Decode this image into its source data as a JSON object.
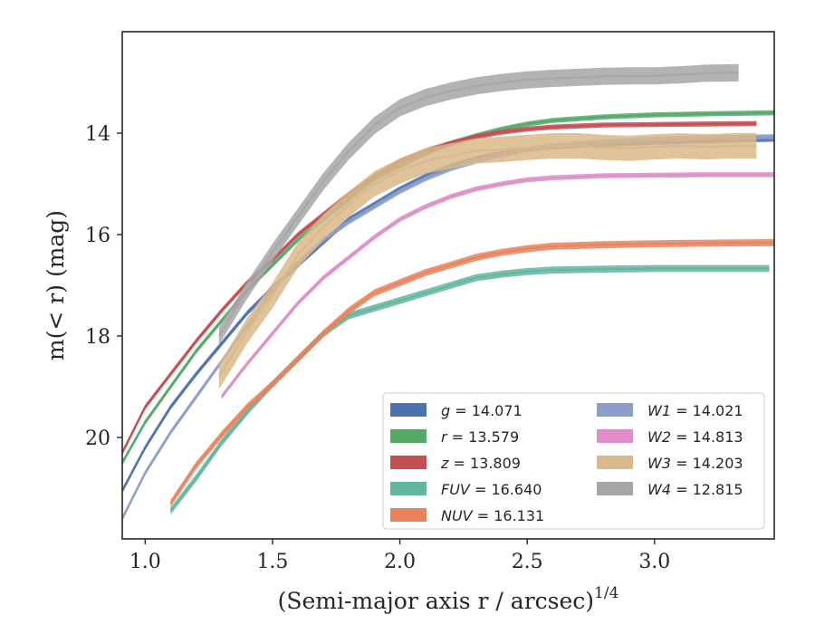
{
  "chart_data": {
    "type": "line",
    "title": "",
    "xlabel": "(Semi-major axis r / arcsec)",
    "xlabel_exponent": "1/4",
    "ylabel": "m(< r) (mag)",
    "xlim": [
      0.91,
      3.47
    ],
    "ylim": [
      22.0,
      12.0
    ],
    "y_inverted": true,
    "grid": false,
    "legend_position": "lower-right",
    "x_ticks": [
      {
        "value": 1.0,
        "label": "1.0"
      },
      {
        "value": 1.5,
        "label": "1.5"
      },
      {
        "value": 2.0,
        "label": "2.0"
      },
      {
        "value": 2.5,
        "label": "2.5"
      },
      {
        "value": 3.0,
        "label": "3.0"
      }
    ],
    "y_ticks": [
      {
        "value": 14,
        "label": "14"
      },
      {
        "value": 16,
        "label": "16"
      },
      {
        "value": 18,
        "label": "18"
      },
      {
        "value": 20,
        "label": "20"
      }
    ],
    "series": [
      {
        "name": "g",
        "legend_value": "14.071",
        "color": "#4c72b0",
        "x": [
          0.91,
          1.0,
          1.1,
          1.2,
          1.3,
          1.4,
          1.5,
          1.6,
          1.7,
          1.8,
          1.9,
          2.0,
          2.1,
          2.2,
          2.3,
          2.4,
          2.5,
          2.6,
          2.8,
          3.0,
          3.2,
          3.47
        ],
        "y": [
          21.05,
          20.2,
          19.4,
          18.75,
          18.15,
          17.55,
          17.05,
          16.6,
          16.15,
          15.7,
          15.4,
          15.1,
          14.85,
          14.65,
          14.5,
          14.4,
          14.32,
          14.27,
          14.22,
          14.18,
          14.15,
          14.12
        ],
        "band": 0.05
      },
      {
        "name": "r",
        "legend_value": "13.579",
        "color": "#55a868",
        "x": [
          0.91,
          1.0,
          1.1,
          1.2,
          1.3,
          1.4,
          1.5,
          1.6,
          1.7,
          1.8,
          1.9,
          2.0,
          2.1,
          2.2,
          2.3,
          2.4,
          2.5,
          2.6,
          2.8,
          3.0,
          3.2,
          3.47
        ],
        "y": [
          20.5,
          19.7,
          19.0,
          18.3,
          17.7,
          17.1,
          16.6,
          16.1,
          15.7,
          15.3,
          14.9,
          14.65,
          14.4,
          14.2,
          14.05,
          13.92,
          13.82,
          13.75,
          13.68,
          13.64,
          13.62,
          13.6
        ],
        "band": 0.05
      },
      {
        "name": "z",
        "legend_value": "13.809",
        "color": "#c44e52",
        "x": [
          0.91,
          1.0,
          1.1,
          1.2,
          1.3,
          1.4,
          1.5,
          1.6,
          1.7,
          1.8,
          1.9,
          2.0,
          2.1,
          2.2,
          2.3,
          2.4,
          2.5,
          2.6,
          2.8,
          3.0,
          3.2,
          3.4
        ],
        "y": [
          20.3,
          19.4,
          18.75,
          18.1,
          17.5,
          16.95,
          16.5,
          16.0,
          15.6,
          15.2,
          14.85,
          14.55,
          14.35,
          14.2,
          14.07,
          13.98,
          13.92,
          13.88,
          13.84,
          13.83,
          13.82,
          13.81
        ],
        "band": 0.05
      },
      {
        "name": "FUV",
        "legend_value": "16.640",
        "color": "#64b5a0",
        "x": [
          1.1,
          1.2,
          1.3,
          1.4,
          1.5,
          1.6,
          1.7,
          1.8,
          1.9,
          2.0,
          2.1,
          2.2,
          2.3,
          2.4,
          2.5,
          2.6,
          2.8,
          3.0,
          3.2,
          3.45
        ],
        "y": [
          21.45,
          20.8,
          20.1,
          19.5,
          18.95,
          18.45,
          17.95,
          17.6,
          17.45,
          17.3,
          17.15,
          17.0,
          16.85,
          16.78,
          16.73,
          16.7,
          16.68,
          16.67,
          16.67,
          16.67
        ],
        "band": 0.07
      },
      {
        "name": "NUV",
        "legend_value": "16.131",
        "color": "#e8825c",
        "x": [
          1.1,
          1.2,
          1.3,
          1.4,
          1.5,
          1.6,
          1.7,
          1.8,
          1.9,
          2.0,
          2.1,
          2.2,
          2.3,
          2.4,
          2.5,
          2.6,
          2.8,
          3.0,
          3.2,
          3.47
        ],
        "y": [
          21.3,
          20.55,
          19.95,
          19.4,
          18.95,
          18.45,
          17.95,
          17.5,
          17.15,
          16.95,
          16.75,
          16.6,
          16.45,
          16.35,
          16.28,
          16.23,
          16.2,
          16.18,
          16.17,
          16.16
        ],
        "band": 0.07
      },
      {
        "name": "W1",
        "legend_value": "14.021",
        "color": "#8c9dc9",
        "x": [
          0.91,
          1.0,
          1.1,
          1.2,
          1.3,
          1.4,
          1.5,
          1.6,
          1.7,
          1.8,
          1.9,
          2.0,
          2.1,
          2.2,
          2.3,
          2.4,
          2.5,
          2.6,
          2.8,
          3.0,
          3.2,
          3.47
        ],
        "y": [
          21.6,
          20.7,
          19.9,
          19.2,
          18.5,
          17.8,
          17.1,
          16.55,
          16.1,
          15.75,
          15.45,
          15.15,
          14.9,
          14.7,
          14.55,
          14.43,
          14.32,
          14.25,
          14.17,
          14.12,
          14.09,
          14.07
        ],
        "band": 0.05
      },
      {
        "name": "W2",
        "legend_value": "14.813",
        "color": "#dd8fc5",
        "x": [
          1.3,
          1.4,
          1.5,
          1.6,
          1.7,
          1.8,
          1.9,
          2.0,
          2.1,
          2.2,
          2.3,
          2.4,
          2.5,
          2.6,
          2.8,
          3.0,
          3.2,
          3.47
        ],
        "y": [
          19.2,
          18.55,
          17.95,
          17.35,
          16.85,
          16.45,
          16.05,
          15.7,
          15.45,
          15.25,
          15.1,
          15.0,
          14.92,
          14.88,
          14.84,
          14.83,
          14.82,
          14.82
        ],
        "band": 0.05
      },
      {
        "name": "W3",
        "legend_value": "14.203",
        "color": "#d9b88a",
        "x": [
          1.29,
          1.4,
          1.5,
          1.6,
          1.7,
          1.8,
          1.9,
          2.0,
          2.1,
          2.2,
          2.3,
          2.4,
          2.5,
          2.6,
          2.7,
          2.8,
          2.9,
          3.0,
          3.1,
          3.2,
          3.3,
          3.4
        ],
        "y": [
          18.8,
          17.9,
          17.2,
          16.4,
          15.85,
          15.4,
          15.0,
          14.75,
          14.55,
          14.45,
          14.35,
          14.32,
          14.28,
          14.25,
          14.25,
          14.28,
          14.3,
          14.27,
          14.25,
          14.27,
          14.25,
          14.25
        ],
        "band": 0.25
      },
      {
        "name": "W4",
        "legend_value": "12.815",
        "color": "#a6a6a6",
        "x": [
          1.29,
          1.4,
          1.5,
          1.6,
          1.7,
          1.8,
          1.9,
          2.0,
          2.1,
          2.2,
          2.3,
          2.4,
          2.5,
          2.6,
          2.7,
          2.8,
          2.9,
          3.0,
          3.1,
          3.2,
          3.33
        ],
        "y": [
          18.0,
          17.1,
          16.35,
          15.65,
          14.95,
          14.35,
          13.85,
          13.5,
          13.3,
          13.17,
          13.07,
          13.0,
          12.95,
          12.92,
          12.9,
          12.88,
          12.87,
          12.87,
          12.85,
          12.82,
          12.81
        ],
        "band": 0.17
      }
    ],
    "legend_columns": [
      [
        "g",
        "r",
        "z",
        "FUV",
        "NUV"
      ],
      [
        "W1",
        "W2",
        "W3",
        "W4"
      ]
    ]
  }
}
